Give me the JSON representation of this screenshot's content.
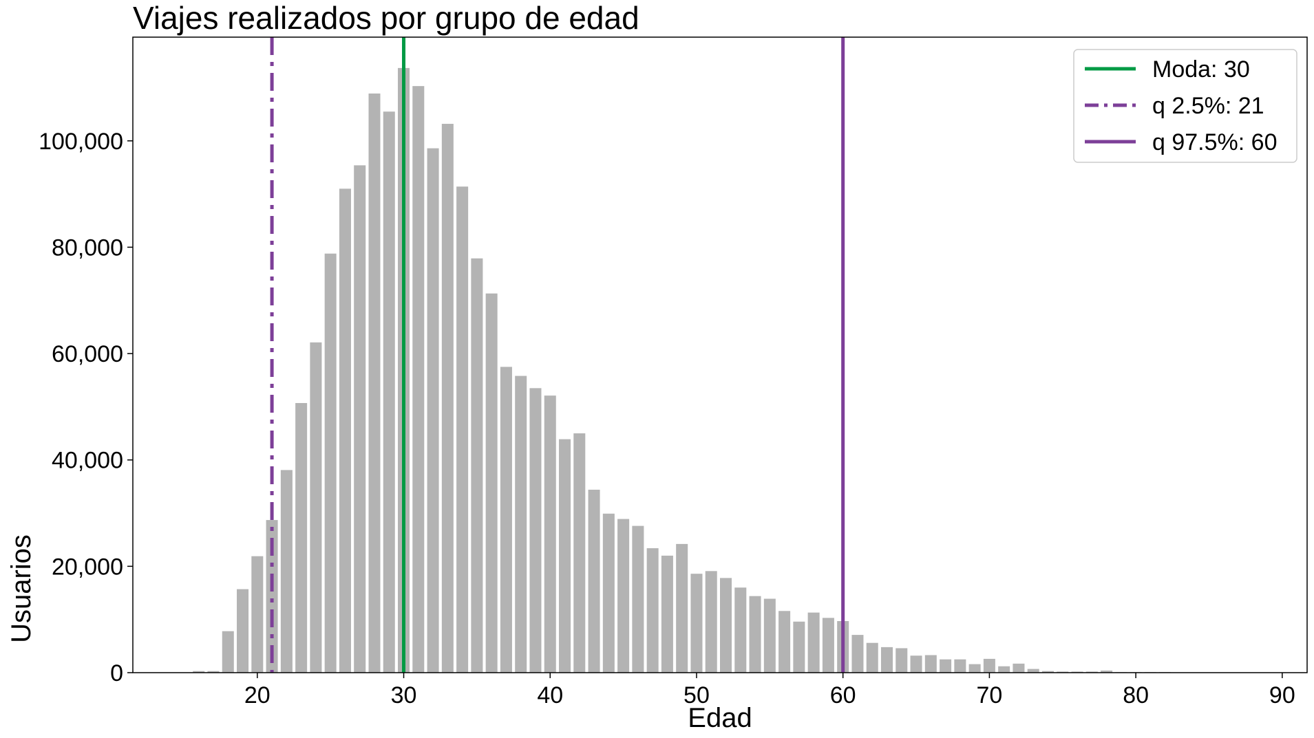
{
  "chart_data": {
    "type": "bar",
    "title": "Viajes realizados por grupo de edad",
    "xlabel": "Edad",
    "ylabel": "Usuarios",
    "xlim": [
      11.5,
      91.7
    ],
    "ylim": [
      0,
      119500
    ],
    "xticks": [
      20,
      30,
      40,
      50,
      60,
      70,
      80,
      90
    ],
    "xtick_labels": [
      "20",
      "30",
      "40",
      "50",
      "60",
      "70",
      "80",
      "90"
    ],
    "yticks": [
      0,
      20000,
      40000,
      60000,
      80000,
      100000
    ],
    "ytick_labels": [
      "0",
      "20,000",
      "40,000",
      "60,000",
      "80,000",
      "100,000"
    ],
    "bar_color": "#b3b3b3",
    "grid": false,
    "legend_position": "top-right",
    "x": [
      16,
      17,
      18,
      19,
      20,
      21,
      22,
      23,
      24,
      25,
      26,
      27,
      28,
      29,
      30,
      31,
      32,
      33,
      34,
      35,
      36,
      37,
      38,
      39,
      40,
      41,
      42,
      43,
      44,
      45,
      46,
      47,
      48,
      49,
      50,
      51,
      52,
      53,
      54,
      55,
      56,
      57,
      58,
      59,
      60,
      61,
      62,
      63,
      64,
      65,
      66,
      67,
      68,
      69,
      70,
      71,
      72,
      73,
      74,
      75,
      76,
      77,
      78,
      79,
      80,
      81,
      82,
      83,
      84,
      85,
      86,
      87,
      88,
      89
    ],
    "values": [
      300,
      300,
      7800,
      15700,
      21900,
      28700,
      38100,
      50700,
      62100,
      78800,
      91000,
      95400,
      108900,
      105500,
      113700,
      110300,
      98600,
      103200,
      91400,
      77900,
      71300,
      57500,
      55800,
      53500,
      52100,
      43900,
      45000,
      34400,
      29900,
      28900,
      27600,
      23400,
      22000,
      24200,
      18600,
      19100,
      17800,
      16000,
      14400,
      13900,
      11600,
      9600,
      11300,
      10300,
      9700,
      7100,
      5600,
      4800,
      4600,
      3200,
      3300,
      2500,
      2500,
      1600,
      2600,
      1200,
      1700,
      700,
      300,
      200,
      200,
      200,
      400,
      100,
      100,
      100,
      100,
      0,
      0,
      0,
      0,
      0,
      0,
      0
    ],
    "reference_lines": [
      {
        "label": "Moda: 30",
        "x": 30,
        "color": "#009a44",
        "style": "solid"
      },
      {
        "label": "q 2.5%: 21",
        "x": 21,
        "color": "#7d3f98",
        "style": "dashdot"
      },
      {
        "label": "q 97.5%: 60",
        "x": 60,
        "color": "#7d3f98",
        "style": "solid"
      }
    ]
  }
}
